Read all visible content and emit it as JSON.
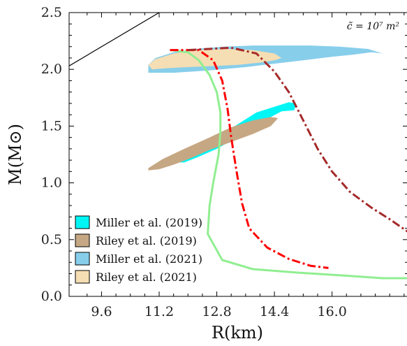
{
  "chart_data": {
    "type": "line",
    "xlabel": "R(km)",
    "ylabel": "M(M⊙)",
    "xlim": [
      8.7,
      18.1
    ],
    "ylim": [
      0.0,
      2.5
    ],
    "xticks": [
      9.6,
      11.2,
      12.8,
      14.4,
      16.0
    ],
    "xtick_labels": [
      "9.6",
      "11.2",
      "12.8",
      "14.4",
      "16.0"
    ],
    "yticks": [
      0.0,
      0.5,
      1.0,
      1.5,
      2.0,
      2.5
    ],
    "ytick_labels": [
      "0.0",
      "0.5",
      "1.0",
      "1.5",
      "2.0",
      "2.5"
    ],
    "annotation": "c̃ = 10⁷ m²",
    "legend_position": "lower-left",
    "grid": false,
    "regions": [
      {
        "name": "Miller et al. (2019)",
        "color": "#00f5f5",
        "polygon": [
          [
            11.6,
            1.18
          ],
          [
            11.9,
            1.25
          ],
          [
            12.5,
            1.36
          ],
          [
            13.1,
            1.46
          ],
          [
            13.5,
            1.54
          ],
          [
            13.9,
            1.62
          ],
          [
            14.4,
            1.67
          ],
          [
            14.8,
            1.71
          ],
          [
            15.0,
            1.7
          ],
          [
            14.95,
            1.64
          ],
          [
            14.6,
            1.63
          ],
          [
            14.3,
            1.58
          ],
          [
            14.0,
            1.5
          ],
          [
            13.6,
            1.43
          ],
          [
            13.2,
            1.37
          ],
          [
            12.8,
            1.3
          ],
          [
            12.3,
            1.23
          ],
          [
            11.9,
            1.18
          ]
        ]
      },
      {
        "name": "Riley et al. (2019)",
        "color": "#c5a783",
        "polygon": [
          [
            10.9,
            1.13
          ],
          [
            11.3,
            1.21
          ],
          [
            11.9,
            1.3
          ],
          [
            12.6,
            1.4
          ],
          [
            13.2,
            1.49
          ],
          [
            13.8,
            1.55
          ],
          [
            14.3,
            1.58
          ],
          [
            14.5,
            1.57
          ],
          [
            14.3,
            1.5
          ],
          [
            13.8,
            1.43
          ],
          [
            13.2,
            1.36
          ],
          [
            12.6,
            1.29
          ],
          [
            12.1,
            1.22
          ],
          [
            11.6,
            1.16
          ],
          [
            11.2,
            1.12
          ],
          [
            10.9,
            1.11
          ]
        ]
      },
      {
        "name": "Miller et al. (2021)",
        "color": "#87ceeb",
        "polygon": [
          [
            10.9,
            1.97
          ],
          [
            11.6,
            1.97
          ],
          [
            12.6,
            1.99
          ],
          [
            13.6,
            2.02
          ],
          [
            14.4,
            2.05
          ],
          [
            15.2,
            2.08
          ],
          [
            16.0,
            2.11
          ],
          [
            16.6,
            2.13
          ],
          [
            17.1,
            2.15
          ],
          [
            17.4,
            2.14
          ],
          [
            17.0,
            2.18
          ],
          [
            16.2,
            2.2
          ],
          [
            15.4,
            2.21
          ],
          [
            14.6,
            2.21
          ],
          [
            13.8,
            2.21
          ],
          [
            13.0,
            2.2
          ],
          [
            12.2,
            2.18
          ],
          [
            11.6,
            2.15
          ],
          [
            11.1,
            2.1
          ],
          [
            10.9,
            2.04
          ]
        ]
      },
      {
        "name": "Riley et al. (2021)",
        "color": "#f5deb3",
        "polygon": [
          [
            11.0,
            2.0
          ],
          [
            11.4,
            2.01
          ],
          [
            12.0,
            2.02
          ],
          [
            12.8,
            2.03
          ],
          [
            13.4,
            2.04
          ],
          [
            14.0,
            2.06
          ],
          [
            14.4,
            2.08
          ],
          [
            14.6,
            2.1
          ],
          [
            14.4,
            2.14
          ],
          [
            13.8,
            2.17
          ],
          [
            13.0,
            2.18
          ],
          [
            12.2,
            2.17
          ],
          [
            11.6,
            2.14
          ],
          [
            11.1,
            2.09
          ],
          [
            10.9,
            2.04
          ]
        ]
      }
    ],
    "lines": [
      {
        "style": "solid",
        "color": "#000000",
        "width": 1.2,
        "points": [
          [
            8.7,
            2.03
          ],
          [
            11.2,
            2.5
          ]
        ]
      },
      {
        "style": "solid",
        "color": "#90ee90",
        "width": 3,
        "points": [
          [
            11.5,
            2.17
          ],
          [
            12.0,
            2.15
          ],
          [
            12.3,
            2.08
          ],
          [
            12.6,
            1.95
          ],
          [
            12.8,
            1.8
          ],
          [
            12.9,
            1.62
          ],
          [
            12.9,
            1.45
          ],
          [
            12.85,
            1.25
          ],
          [
            12.7,
            1.0
          ],
          [
            12.6,
            0.8
          ],
          [
            12.55,
            0.55
          ],
          [
            12.95,
            0.32
          ],
          [
            13.8,
            0.24
          ],
          [
            15.0,
            0.21
          ],
          [
            16.5,
            0.18
          ],
          [
            17.4,
            0.16
          ],
          [
            18.1,
            0.16
          ]
        ]
      },
      {
        "style": "dashdot",
        "color": "#ff0000",
        "width": 3,
        "points": [
          [
            11.5,
            2.17
          ],
          [
            12.3,
            2.17
          ],
          [
            12.7,
            2.08
          ],
          [
            12.95,
            1.9
          ],
          [
            13.1,
            1.65
          ],
          [
            13.2,
            1.4
          ],
          [
            13.35,
            1.1
          ],
          [
            13.5,
            0.82
          ],
          [
            13.7,
            0.6
          ],
          [
            14.2,
            0.43
          ],
          [
            14.8,
            0.33
          ],
          [
            15.4,
            0.27
          ],
          [
            15.9,
            0.25
          ]
        ]
      },
      {
        "style": "dashdot",
        "color": "#a52a2a",
        "width": 3,
        "points": [
          [
            12.0,
            2.17
          ],
          [
            13.2,
            2.19
          ],
          [
            13.9,
            2.14
          ],
          [
            14.4,
            1.98
          ],
          [
            14.8,
            1.8
          ],
          [
            15.2,
            1.55
          ],
          [
            15.6,
            1.3
          ],
          [
            16.0,
            1.1
          ],
          [
            16.5,
            0.92
          ],
          [
            17.1,
            0.78
          ],
          [
            17.6,
            0.68
          ],
          [
            18.1,
            0.57
          ]
        ]
      }
    ],
    "series": [
      {
        "name": "Miller et al. (2019)",
        "color": "#00f5f5"
      },
      {
        "name": "Riley et al. (2019)",
        "color": "#c5a783"
      },
      {
        "name": "Miller et al. (2021)",
        "color": "#87ceeb"
      },
      {
        "name": "Riley et al. (2021)",
        "color": "#f5deb3"
      }
    ]
  }
}
